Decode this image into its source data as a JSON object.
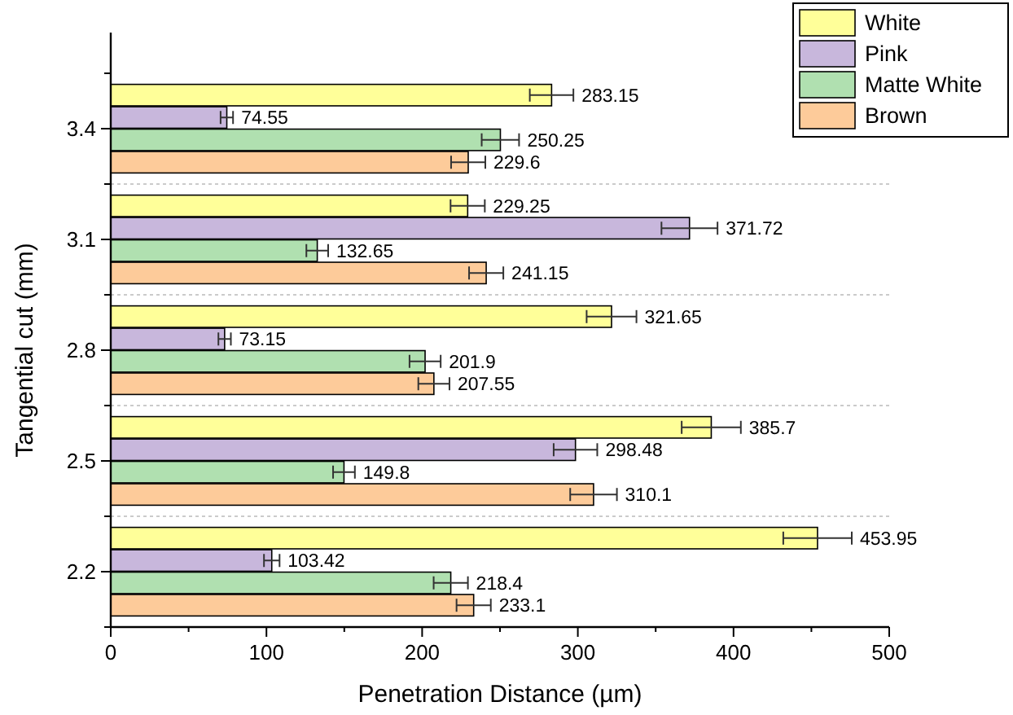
{
  "chart_data": {
    "type": "bar",
    "orientation": "horizontal",
    "xlabel": "Penetration Distance (µm)",
    "ylabel": "Tangential cut (mm)",
    "categories": [
      "3.4",
      "3.1",
      "2.8",
      "2.5",
      "2.2"
    ],
    "series": [
      {
        "name": "White",
        "color": "#ffff99",
        "values": [
          283.15,
          229.25,
          321.65,
          385.7,
          453.95
        ],
        "errors": [
          14,
          11,
          16,
          19,
          22
        ]
      },
      {
        "name": "Pink",
        "color": "#c8b7dc",
        "values": [
          74.55,
          371.72,
          73.15,
          298.48,
          103.42
        ],
        "errors": [
          4,
          18,
          4,
          14,
          5
        ]
      },
      {
        "name": "Matte White",
        "color": "#b0e0b0",
        "values": [
          250.25,
          132.65,
          201.9,
          149.8,
          218.4
        ],
        "errors": [
          12,
          7,
          10,
          7,
          11
        ]
      },
      {
        "name": "Brown",
        "color": "#fdcb9a",
        "values": [
          229.6,
          241.15,
          207.55,
          310.1,
          233.1
        ],
        "errors": [
          11,
          11,
          10,
          15,
          11
        ]
      }
    ],
    "xlim": [
      0,
      500
    ],
    "xticks": [
      0,
      100,
      200,
      300,
      400,
      500
    ],
    "data_labels": true,
    "grid": "y",
    "legend": "top right"
  }
}
